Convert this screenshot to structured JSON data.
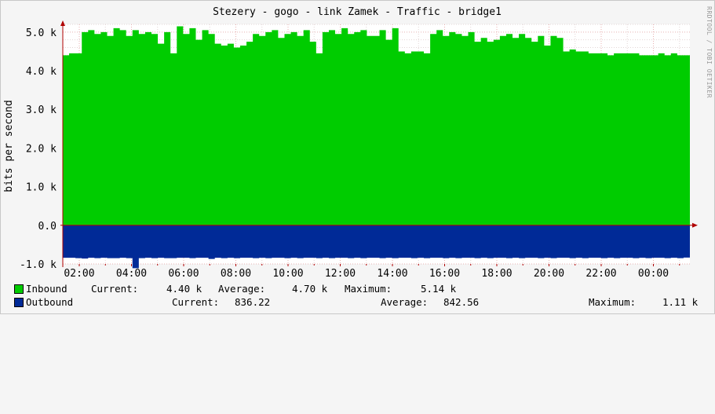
{
  "chart_data": {
    "type": "area",
    "title": "Stezery - gogo - link Zamek - Traffic - bridge1",
    "ylabel": "bits per second",
    "watermark": "RRDTOOL / TOBI OETIKER",
    "ylim": [
      -1000,
      5200
    ],
    "y_ticks": [
      {
        "value": -1000,
        "label": "-1.0 k"
      },
      {
        "value": 0,
        "label": "0.0"
      },
      {
        "value": 1000,
        "label": "1.0 k"
      },
      {
        "value": 2000,
        "label": "2.0 k"
      },
      {
        "value": 3000,
        "label": "3.0 k"
      },
      {
        "value": 4000,
        "label": "4.0 k"
      },
      {
        "value": 5000,
        "label": "5.0 k"
      }
    ],
    "x_ticks": [
      "02:00",
      "04:00",
      "06:00",
      "08:00",
      "10:00",
      "12:00",
      "14:00",
      "16:00",
      "18:00",
      "20:00",
      "22:00",
      "00:00"
    ],
    "grid": true,
    "series": [
      {
        "name": "Inbound",
        "color": "#00cc00",
        "values": [
          4400,
          4450,
          4450,
          5000,
          5050,
          4950,
          5000,
          4900,
          5100,
          5050,
          4900,
          5050,
          4950,
          5000,
          4950,
          4700,
          5000,
          4450,
          5150,
          4950,
          5100,
          4800,
          5050,
          4950,
          4700,
          4650,
          4700,
          4600,
          4650,
          4750,
          4950,
          4900,
          5000,
          5050,
          4850,
          4950,
          5000,
          4900,
          5050,
          4750,
          4450,
          5000,
          5050,
          4950,
          5100,
          4950,
          5000,
          5050,
          4900,
          4900,
          5050,
          4800,
          5100,
          4500,
          4450,
          4500,
          4500,
          4450,
          4950,
          5050,
          4900,
          5000,
          4950,
          4900,
          5000,
          4750,
          4850,
          4750,
          4800,
          4900,
          4950,
          4850,
          4950,
          4850,
          4750,
          4900,
          4650,
          4900,
          4850,
          4500,
          4550,
          4500,
          4500,
          4450,
          4450,
          4450,
          4400,
          4450,
          4450,
          4450,
          4450,
          4400,
          4400,
          4400,
          4450,
          4400,
          4450,
          4400,
          4400
        ]
      },
      {
        "name": "Outbound",
        "color": "#002a97",
        "values": [
          -840,
          -840,
          -850,
          -860,
          -840,
          -850,
          -840,
          -850,
          -850,
          -840,
          -850,
          -1110,
          -850,
          -840,
          -850,
          -840,
          -850,
          -850,
          -840,
          -840,
          -850,
          -840,
          -840,
          -870,
          -840,
          -850,
          -840,
          -850,
          -840,
          -840,
          -850,
          -840,
          -850,
          -840,
          -840,
          -850,
          -840,
          -850,
          -840,
          -840,
          -850,
          -840,
          -850,
          -840,
          -840,
          -850,
          -840,
          -850,
          -840,
          -840,
          -850,
          -840,
          -850,
          -840,
          -840,
          -850,
          -840,
          -850,
          -840,
          -840,
          -850,
          -840,
          -850,
          -840,
          -840,
          -850,
          -840,
          -850,
          -840,
          -840,
          -850,
          -840,
          -850,
          -840,
          -840,
          -850,
          -840,
          -850,
          -840,
          -840,
          -850,
          -840,
          -850,
          -840,
          -840,
          -850,
          -840,
          -850,
          -840,
          -840,
          -850,
          -840,
          -850,
          -840,
          -840,
          -850,
          -840,
          -850,
          -836
        ]
      }
    ]
  },
  "legend": {
    "inbound": {
      "name": "Inbound",
      "current_label": "Current:",
      "current_value": "4.40 k",
      "average_label": "Average:",
      "average_value": "4.70 k",
      "maximum_label": "Maximum:",
      "maximum_value": "5.14 k"
    },
    "outbound": {
      "name": "Outbound",
      "current_label": "Current:",
      "current_value": "836.22",
      "average_label": "Average:",
      "average_value": "842.56",
      "maximum_label": "Maximum:",
      "maximum_value": "1.11 k"
    }
  }
}
